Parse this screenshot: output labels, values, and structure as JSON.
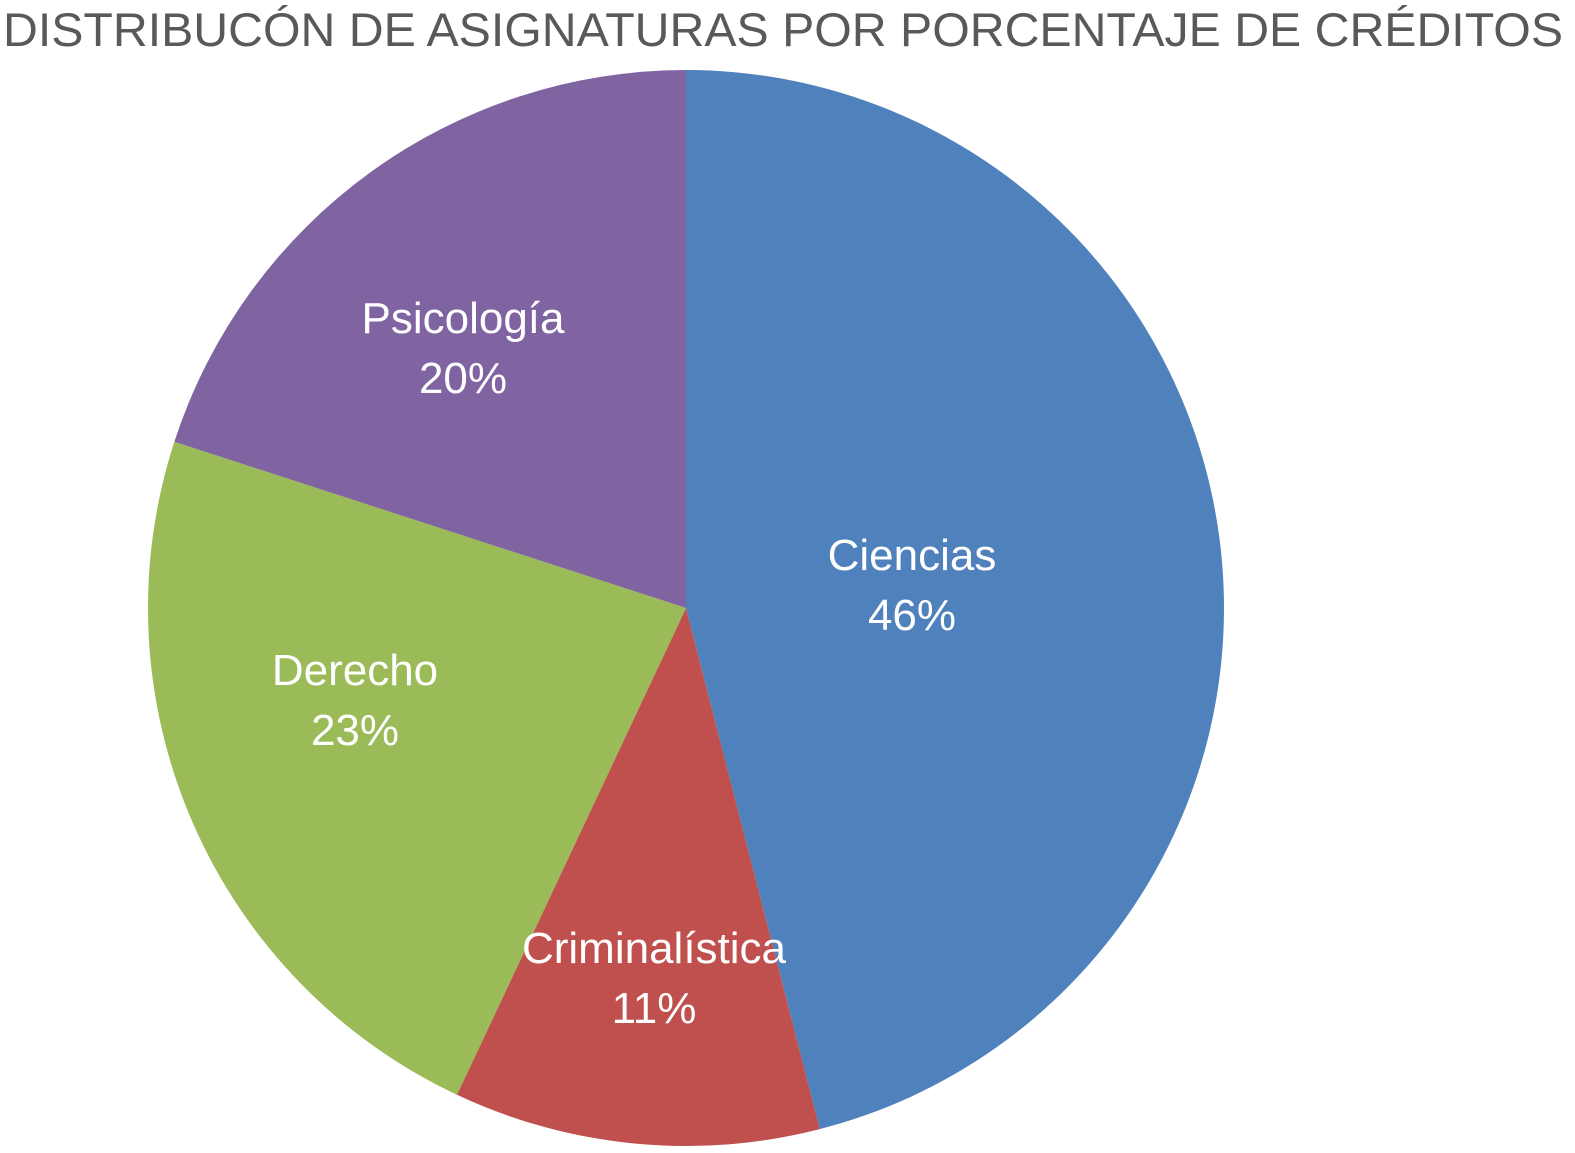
{
  "chart_data": {
    "type": "pie",
    "title": "DISTRIBUCÓN DE ASIGNATURAS POR PORCENTAJE DE CRÉDITOS",
    "start": "top",
    "direction": "clockwise",
    "slices": [
      {
        "label": "Ciencias",
        "value": 46,
        "value_label": "46%",
        "color": "#4F81BD"
      },
      {
        "label": "Criminalística",
        "value": 11,
        "value_label": "11%",
        "color": "#C0504D"
      },
      {
        "label": "Derecho",
        "value": 23,
        "value_label": "23%",
        "color": "#9BBB59"
      },
      {
        "label": "Psicología",
        "value": 20,
        "value_label": "20%",
        "color": "#8064A2"
      }
    ],
    "legend": "none"
  }
}
